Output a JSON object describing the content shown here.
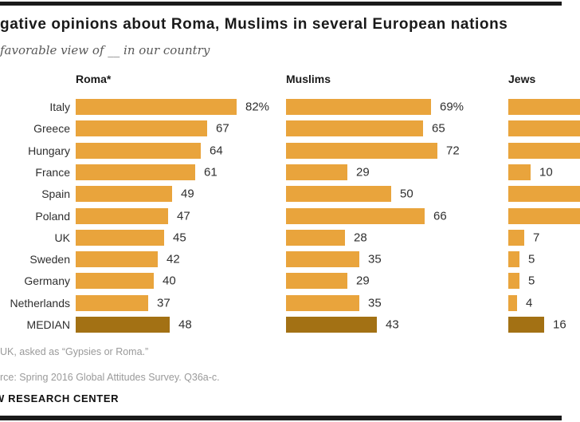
{
  "header": {
    "title": "gative opinions about Roma, Muslims in several European nations",
    "subtitle": "favorable view of __ in our country"
  },
  "chart_data": {
    "type": "bar",
    "orientation": "horizontal",
    "unit": "%",
    "grid": false,
    "axes_shown": false,
    "categories": [
      "Italy",
      "Greece",
      "Hungary",
      "France",
      "Spain",
      "Poland",
      "UK",
      "Sweden",
      "Germany",
      "Netherlands",
      "MEDIAN"
    ],
    "series": [
      {
        "name": "Roma*",
        "values": [
          82,
          67,
          64,
          61,
          49,
          47,
          45,
          42,
          40,
          37,
          48
        ],
        "labels": [
          "82%",
          "67",
          "64",
          "61",
          "49",
          "47",
          "45",
          "42",
          "40",
          "37",
          "48"
        ],
        "clipped": [
          false,
          false,
          false,
          false,
          false,
          false,
          false,
          false,
          false,
          false,
          false
        ]
      },
      {
        "name": "Muslims",
        "values": [
          69,
          65,
          72,
          29,
          50,
          66,
          28,
          35,
          29,
          35,
          43
        ],
        "labels": [
          "69%",
          "65",
          "72",
          "29",
          "50",
          "66",
          "28",
          "35",
          "29",
          "35",
          "43"
        ],
        "clipped": [
          false,
          false,
          false,
          false,
          false,
          false,
          false,
          false,
          false,
          false,
          false
        ]
      },
      {
        "name": "Jews",
        "values": [
          null,
          null,
          null,
          10,
          null,
          null,
          7,
          5,
          5,
          4,
          16
        ],
        "labels": [
          "",
          "",
          "",
          "10",
          "",
          "",
          "7",
          "5",
          "5",
          "4",
          "16"
        ],
        "clipped": [
          true,
          true,
          true,
          false,
          true,
          true,
          false,
          false,
          false,
          false,
          false
        ]
      }
    ],
    "colors": {
      "bar": "#E9A43C",
      "median_bar": "#A37114"
    },
    "median_row": "MEDIAN"
  },
  "footer": {
    "footnote": "UK, asked as “Gypsies or Roma.”",
    "source": "rce: Spring 2016 Global Attitudes Survey. Q36a-c.",
    "branding": "W RESEARCH CENTER"
  }
}
